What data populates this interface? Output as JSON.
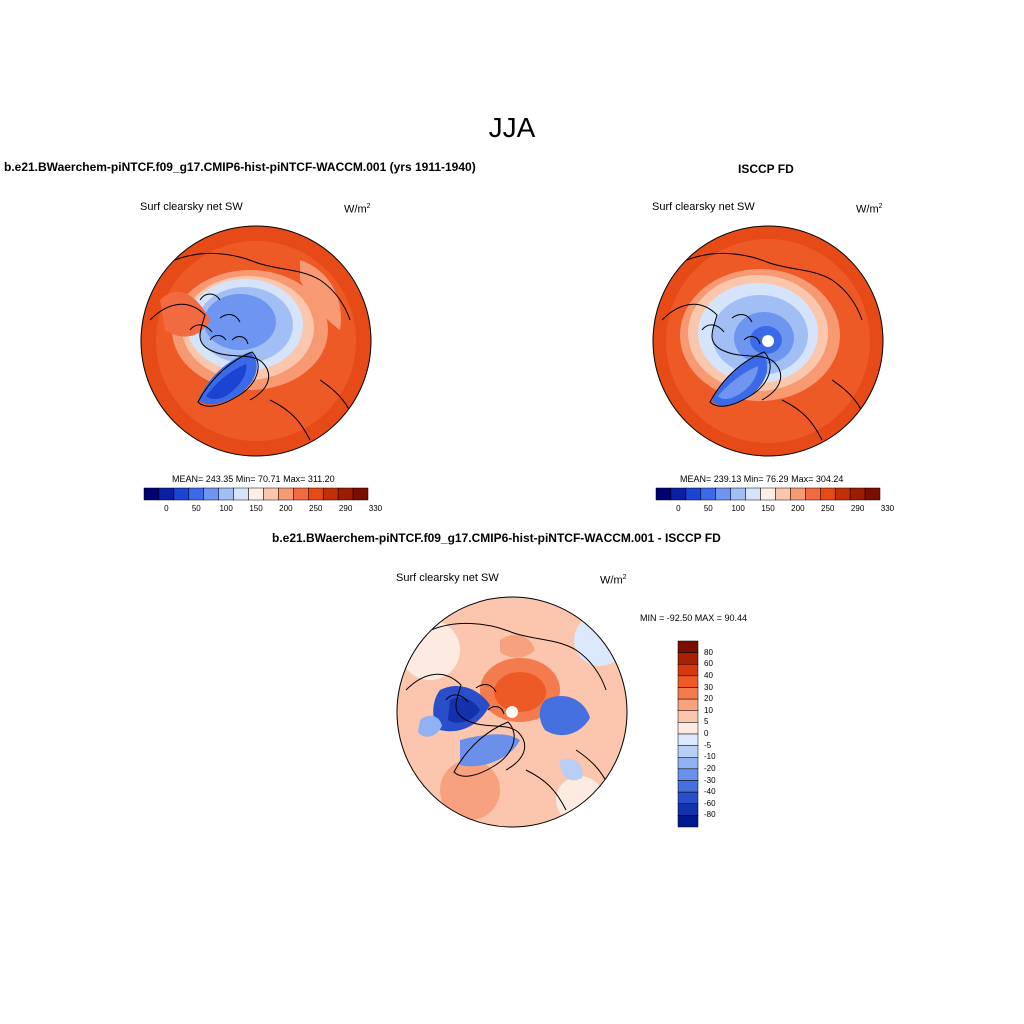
{
  "figure": {
    "title": "JJA",
    "panels": [
      {
        "title": "b.e21.BWaerchem-piNTCF.f09_g17.CMIP6-hist-piNTCF-WACCM.001 (yrs 1911-1940)",
        "variable": "Surf clearsky net SW",
        "units_base": "W/m",
        "units_exp": "2",
        "stats": "MEAN= 243.35  Min=  70.71  Max= 311.20"
      },
      {
        "title": "ISCCP FD",
        "variable": "Surf clearsky net SW",
        "units_base": "W/m",
        "units_exp": "2",
        "stats": "MEAN= 239.13  Min=  76.29  Max= 304.24"
      },
      {
        "title": "b.e21.BWaerchem-piNTCF.f09_g17.CMIP6-hist-piNTCF-WACCM.001 - ISCCP FD",
        "variable": "Surf clearsky net SW",
        "units_base": "W/m",
        "units_exp": "2",
        "stats": "MIN = -92.50 MAX =  90.44"
      }
    ],
    "colorbar_abs": {
      "labels": [
        "0",
        "50",
        "100",
        "150",
        "200",
        "250",
        "290",
        "330"
      ],
      "colors": [
        "#000075",
        "#0a1fa6",
        "#1a44d1",
        "#3a6ae8",
        "#6e95f0",
        "#a2bff5",
        "#d6e4fb",
        "#fdeee6",
        "#fbc7ac",
        "#f79a74",
        "#f26a3f",
        "#e64a17",
        "#c42f09",
        "#9c1d04",
        "#7a0c00"
      ]
    },
    "colorbar_diff": {
      "labels": [
        "80",
        "60",
        "40",
        "30",
        "20",
        "10",
        "5",
        "0",
        "-5",
        "-10",
        "-20",
        "-30",
        "-40",
        "-60",
        "-80"
      ],
      "colors": [
        "#7a0c00",
        "#a81f04",
        "#d63a0c",
        "#ee5a26",
        "#f47b4d",
        "#f8a17f",
        "#fbc6ad",
        "#fdebe1",
        "#dbe7fb",
        "#b7cff7",
        "#91b2f2",
        "#6a90ea",
        "#4570df",
        "#2a4ec9",
        "#1530ad",
        "#001990"
      ]
    },
    "colors": {
      "ocean_warm": "#ee5a26",
      "land_warm": "#f26a3f",
      "ice_blue": "#6e95f0",
      "greenland_blue": "#3a6ae8",
      "coast": "#000000"
    }
  }
}
